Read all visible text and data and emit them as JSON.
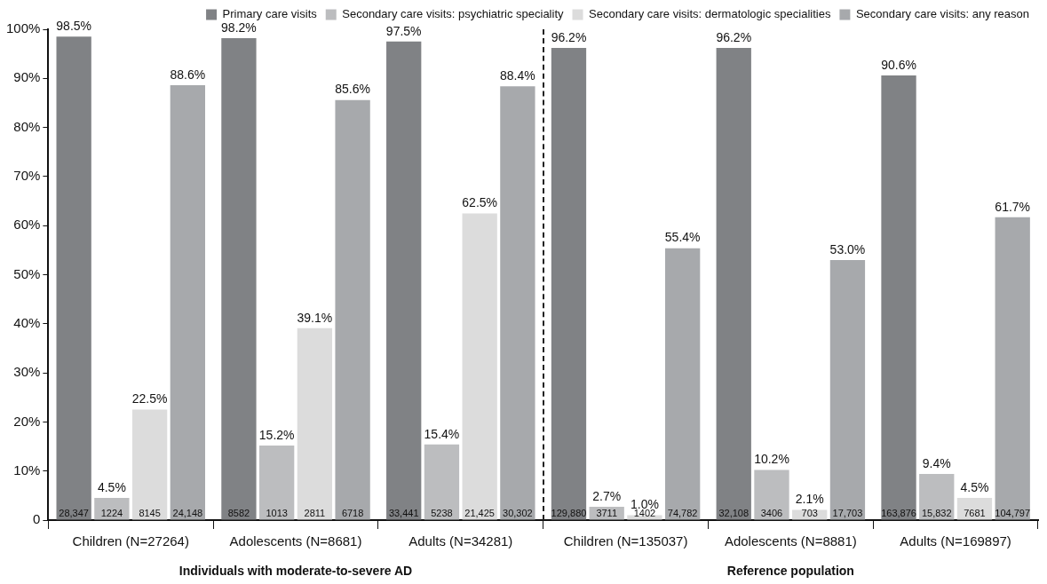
{
  "chart_data": {
    "type": "bar",
    "categories": [
      "Children (N=27264)",
      "Adolescents (N=8681)",
      "Adults (N=34281)",
      "Children (N=135037)",
      "Adolescents (N=8881)",
      "Adults (N=169897)"
    ],
    "series": [
      {
        "name": "Primary care visits",
        "color": "#808285",
        "values": [
          98.5,
          98.2,
          97.5,
          96.2,
          96.2,
          90.6
        ],
        "value_labels": [
          "98.5%",
          "98.2%",
          "97.5%",
          "96.2%",
          "96.2%",
          "90.6%"
        ]
      },
      {
        "name": "Secondary care visits: psychiatric speciality",
        "color": "#bcbdbf",
        "values": [
          4.5,
          15.2,
          15.4,
          2.7,
          10.2,
          9.4
        ],
        "value_labels": [
          "4.5%",
          "15.2%",
          "15.4%",
          "2.7%",
          "10.2%",
          "9.4%"
        ]
      },
      {
        "name": "Secondary care visits: dermatologic specialities",
        "color": "#dcdcdc",
        "values": [
          22.5,
          39.1,
          62.5,
          1.0,
          2.1,
          4.5
        ],
        "value_labels": [
          "22.5%",
          "39.1%",
          "62.5%",
          "1.0%",
          "2.1%",
          "4.5%"
        ]
      },
      {
        "name": "Secondary care visits: any reason",
        "color": "#a7a9ac",
        "values": [
          88.6,
          85.6,
          88.4,
          55.4,
          53.0,
          61.7
        ],
        "value_labels": [
          "88.6%",
          "85.6%",
          "88.4%",
          "55.4%",
          "53.0%",
          "61.7%"
        ]
      }
    ],
    "ylim": [
      0,
      100
    ],
    "yticks": [
      {
        "value": 0,
        "label": "0"
      },
      {
        "value": 10,
        "label": "10%"
      },
      {
        "value": 20,
        "label": "20%"
      },
      {
        "value": 30,
        "label": "30%"
      },
      {
        "value": 40,
        "label": "40%"
      },
      {
        "value": 50,
        "label": "50%"
      },
      {
        "value": 60,
        "label": "60%"
      },
      {
        "value": 70,
        "label": "70%"
      },
      {
        "value": 80,
        "label": "80%"
      },
      {
        "value": 90,
        "label": "90%"
      },
      {
        "value": 100,
        "label": "100%"
      }
    ],
    "annotations": [
      "Individuals with moderate-to-severe AD",
      "Reference population",
      "28,347",
      "1224",
      "8145",
      "24,148",
      "8582",
      "1013",
      "2811",
      "6718",
      "33,441",
      "5238",
      "21,425",
      "30,302",
      "129,880",
      "3711",
      "1402",
      "74,782",
      "32,108",
      "3406",
      "703",
      "17,703",
      "163,876",
      "15,832",
      "7681",
      "104,797"
    ],
    "grid": false,
    "legend": "top"
  }
}
